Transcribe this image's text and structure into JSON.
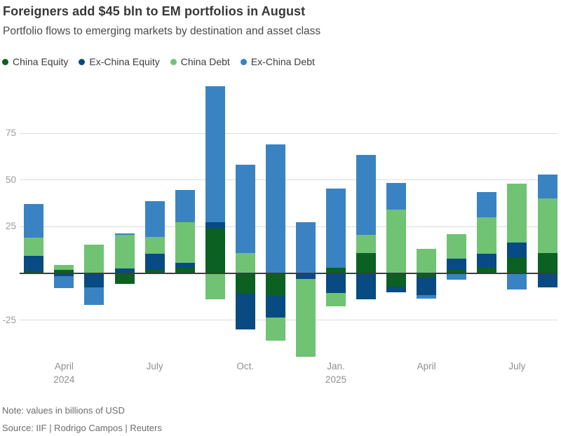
{
  "header": {
    "title": "Foreigners add $45 bln to EM portfolios in August",
    "subtitle": "Portfolio flows to emerging markets by destination and asset class"
  },
  "legend": {
    "items": [
      {
        "label": "China Equity",
        "color": "#0a6121"
      },
      {
        "label": "Ex-China Equity",
        "color": "#084a82"
      },
      {
        "label": "China Debt",
        "color": "#6fc373"
      },
      {
        "label": "Ex-China Debt",
        "color": "#3a83c2"
      }
    ]
  },
  "chart_data": {
    "type": "bar",
    "stacked": true,
    "title": "Foreigners add $45 bln to EM portfolios in August",
    "subtitle": "Portfolio flows to emerging markets by destination and asset class",
    "unit": "billions of USD",
    "grid": "horizontal",
    "legend_position": "top",
    "baseline": 0,
    "ylim": [
      -47,
      105
    ],
    "y_ticks": [
      75,
      50,
      25,
      -25
    ],
    "categories": [
      "Mar 2024",
      "Apr 2024",
      "May 2024",
      "Jun 2024",
      "Jul 2024",
      "Aug 2024",
      "Sep 2024",
      "Oct 2024",
      "Nov 2024",
      "Dec 2024",
      "Jan 2025",
      "Feb 2025",
      "Mar 2025",
      "Apr 2025",
      "May 2025",
      "Jun 2025",
      "Jul 2025",
      "Aug 2025"
    ],
    "series": [
      {
        "name": "China Equity",
        "color": "#0a6121",
        "values": [
          1,
          2,
          0,
          -5.5,
          2,
          3.5,
          24,
          -10.5,
          -12,
          0,
          3,
          11,
          -7,
          -2,
          2,
          3.5,
          8.5,
          11
        ]
      },
      {
        "name": "Ex-China Equity",
        "color": "#084a82",
        "values": [
          8.5,
          -1.5,
          -7.5,
          2.5,
          8.5,
          2,
          3.5,
          -19.5,
          -11.5,
          -3,
          -10.5,
          -14,
          -3,
          -9.5,
          6,
          7,
          8,
          -7.5
        ]
      },
      {
        "name": "China Debt",
        "color": "#6fc373",
        "values": [
          9.5,
          2.5,
          15.5,
          18,
          9,
          22,
          -14,
          11,
          -12.5,
          -41.5,
          -7,
          9.5,
          34,
          13,
          13,
          19.5,
          31.5,
          29
        ]
      },
      {
        "name": "Ex-China Debt",
        "color": "#3a83c2",
        "values": [
          18,
          -6.5,
          -9.5,
          1,
          19,
          17,
          72.5,
          47,
          69,
          27.5,
          42.5,
          43,
          14.5,
          -2,
          -3.5,
          13.5,
          -8.5,
          13
        ]
      }
    ],
    "x_tick_labels": [
      {
        "index": 1,
        "lines": [
          "April",
          "2024"
        ]
      },
      {
        "index": 4,
        "lines": [
          "July"
        ]
      },
      {
        "index": 7,
        "lines": [
          "Oct."
        ]
      },
      {
        "index": 10,
        "lines": [
          "Jan.",
          "2025"
        ]
      },
      {
        "index": 13,
        "lines": [
          "April"
        ]
      },
      {
        "index": 16,
        "lines": [
          "July"
        ]
      }
    ]
  },
  "footer": {
    "note": "Note: values in billions of USD",
    "source": "Source: IIF | Rodrigo Campos | Reuters"
  },
  "colors": {
    "grid": "#dcdcdc",
    "zero_line": "#3d3d3d",
    "y_tick_text": "#9c9c9c",
    "x_tick_text": "#8f8f8f"
  }
}
